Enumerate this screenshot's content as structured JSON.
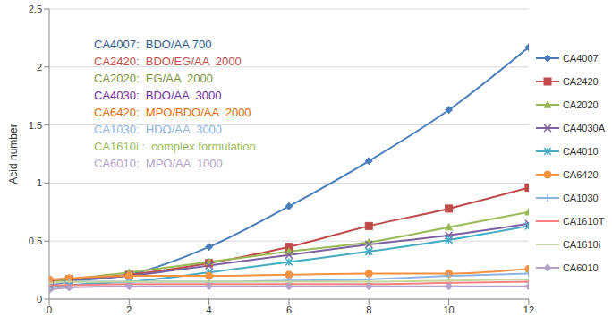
{
  "chart_data": {
    "type": "line",
    "y_label": "Acid number",
    "x": [
      0,
      0.5,
      2,
      4,
      6,
      8,
      10,
      12
    ],
    "xlim": [
      0,
      12
    ],
    "xticks": [
      0,
      2,
      4,
      6,
      8,
      10,
      12
    ],
    "ylim": [
      0,
      2.5
    ],
    "yticks": [
      0,
      0.5,
      1,
      1.5,
      2,
      2.5
    ],
    "grid": true,
    "legend": "right",
    "annotations": [
      {
        "text": "CA4007:  BDO/AA 700",
        "color": "#2f5d8e"
      },
      {
        "text": "CA2420:  BDO/EG/AA  2000",
        "color": "#c0504d"
      },
      {
        "text": "CA2020:  EG/AA  2000",
        "color": "#77933c"
      },
      {
        "text": "CA4030:  BDO/AA  3000",
        "color": "#7030a0"
      },
      {
        "text": "CA6420:  MPO/BDO/AA  2000",
        "color": "#e46c0a"
      },
      {
        "text": "CA1030:  HDO/AA  3000",
        "color": "#8eb4e3"
      },
      {
        "text": "CA1610i :  complex formulation",
        "color": "#9bbb59"
      },
      {
        "text": "CA6010:  MPO/AA  1000",
        "color": "#b3a2c7"
      }
    ],
    "series": [
      {
        "name": "CA4007",
        "color": "#4a7ebb",
        "marker": "diamond",
        "values": [
          0.12,
          0.15,
          0.21,
          0.45,
          0.8,
          1.19,
          1.63,
          2.17
        ]
      },
      {
        "name": "CA2420",
        "color": "#be4b48",
        "marker": "square",
        "values": [
          0.15,
          0.17,
          0.21,
          0.31,
          0.45,
          0.63,
          0.78,
          0.96
        ]
      },
      {
        "name": "CA2020",
        "color": "#98b954",
        "marker": "triangle",
        "values": [
          0.14,
          0.17,
          0.23,
          0.32,
          0.41,
          0.49,
          0.62,
          0.75
        ]
      },
      {
        "name": "CA4030A",
        "color": "#7d60a0",
        "marker": "x",
        "values": [
          0.13,
          0.16,
          0.2,
          0.29,
          0.38,
          0.47,
          0.55,
          0.65
        ]
      },
      {
        "name": "CA4010",
        "color": "#46aac5",
        "marker": "star",
        "values": [
          0.1,
          0.12,
          0.15,
          0.23,
          0.32,
          0.41,
          0.51,
          0.63
        ]
      },
      {
        "name": "CA6420",
        "color": "#f69240",
        "marker": "circle",
        "values": [
          0.17,
          0.18,
          0.2,
          0.2,
          0.21,
          0.22,
          0.22,
          0.26
        ]
      },
      {
        "name": "CA1030",
        "color": "#8eb4e3",
        "marker": "plus",
        "values": [
          0.13,
          0.15,
          0.15,
          0.15,
          0.16,
          0.17,
          0.2,
          0.22
        ]
      },
      {
        "name": "CA1610T",
        "color": "#ff8080",
        "marker": "dash",
        "values": [
          0.12,
          0.12,
          0.13,
          0.13,
          0.13,
          0.13,
          0.14,
          0.15
        ]
      },
      {
        "name": "CA1610i",
        "color": "#c3d69b",
        "marker": "dash",
        "values": [
          0.14,
          0.15,
          0.15,
          0.15,
          0.15,
          0.15,
          0.16,
          0.17
        ]
      },
      {
        "name": "CA6010",
        "color": "#b3a2c7",
        "marker": "diamond",
        "values": [
          0.08,
          0.1,
          0.11,
          0.11,
          0.11,
          0.11,
          0.11,
          0.11
        ]
      }
    ]
  }
}
